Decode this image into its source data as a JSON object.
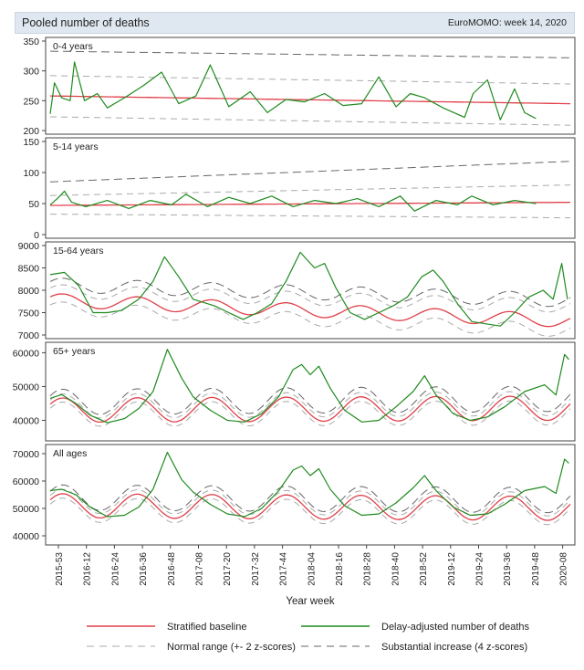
{
  "header": {
    "title": "Pooled number of deaths",
    "subtitle": "EuroMOMO: week 14, 2020"
  },
  "chart_data": {
    "type": "line",
    "xlabel": "Year week",
    "x_ticks": [
      "2015-53",
      "2016-12",
      "2016-24",
      "2016-36",
      "2016-48",
      "2017-08",
      "2017-20",
      "2017-32",
      "2017-44",
      "2018-04",
      "2018-16",
      "2018-28",
      "2018-40",
      "2018-52",
      "2019-12",
      "2019-24",
      "2019-36",
      "2019-48",
      "2020-08"
    ],
    "panels": [
      {
        "label": "0-4 years",
        "ylim": [
          200,
          350
        ],
        "yticks": [
          200,
          250,
          300,
          350
        ],
        "baseline": {
          "start": 258,
          "end": 245,
          "amp": 0
        },
        "delay_adjusted": [
          [
            0,
            228
          ],
          [
            3,
            280
          ],
          [
            8,
            255
          ],
          [
            14,
            250
          ],
          [
            17,
            315
          ],
          [
            24,
            250
          ],
          [
            33,
            262
          ],
          [
            40,
            238
          ],
          [
            52,
            255
          ],
          [
            65,
            275
          ],
          [
            78,
            298
          ],
          [
            90,
            245
          ],
          [
            102,
            258
          ],
          [
            112,
            310
          ],
          [
            125,
            240
          ],
          [
            140,
            265
          ],
          [
            152,
            230
          ],
          [
            165,
            252
          ],
          [
            178,
            248
          ],
          [
            192,
            262
          ],
          [
            205,
            242
          ],
          [
            218,
            245
          ],
          [
            230,
            290
          ],
          [
            242,
            240
          ],
          [
            252,
            262
          ],
          [
            262,
            255
          ],
          [
            275,
            238
          ],
          [
            290,
            222
          ],
          [
            296,
            262
          ],
          [
            306,
            285
          ],
          [
            315,
            218
          ],
          [
            325,
            270
          ],
          [
            332,
            230
          ],
          [
            340,
            220
          ]
        ],
        "normal_upper": {
          "start": 292,
          "end": 278
        },
        "normal_lower": {
          "start": 223,
          "end": 209
        },
        "substantial": {
          "start": 333,
          "end": 322
        }
      },
      {
        "label": "5-14 years",
        "ylim": [
          0,
          150
        ],
        "yticks": [
          0,
          50,
          100,
          150
        ],
        "baseline": {
          "start": 47,
          "end": 52,
          "amp": 0
        },
        "delay_adjusted": [
          [
            0,
            48
          ],
          [
            5,
            58
          ],
          [
            10,
            70
          ],
          [
            15,
            52
          ],
          [
            25,
            45
          ],
          [
            40,
            55
          ],
          [
            55,
            42
          ],
          [
            70,
            55
          ],
          [
            85,
            48
          ],
          [
            95,
            65
          ],
          [
            110,
            45
          ],
          [
            125,
            60
          ],
          [
            140,
            50
          ],
          [
            155,
            62
          ],
          [
            170,
            45
          ],
          [
            185,
            55
          ],
          [
            200,
            50
          ],
          [
            215,
            58
          ],
          [
            230,
            45
          ],
          [
            245,
            62
          ],
          [
            255,
            38
          ],
          [
            270,
            55
          ],
          [
            285,
            48
          ],
          [
            295,
            62
          ],
          [
            310,
            48
          ],
          [
            325,
            55
          ],
          [
            340,
            50
          ]
        ],
        "normal_upper": {
          "start": 63,
          "end": 80
        },
        "normal_lower": {
          "start": 33,
          "end": 27
        },
        "substantial": {
          "start": 85,
          "end": 118
        }
      },
      {
        "label": "15-64 years",
        "ylim": [
          7000,
          9000
        ],
        "yticks": [
          7000,
          7500,
          8000,
          8500,
          9000
        ],
        "baseline": {
          "start": 7780,
          "end": 7320,
          "amp": 150
        },
        "delay_adjusted": [
          [
            0,
            8350
          ],
          [
            10,
            8400
          ],
          [
            20,
            8100
          ],
          [
            30,
            7500
          ],
          [
            40,
            7500
          ],
          [
            50,
            7550
          ],
          [
            62,
            7800
          ],
          [
            72,
            8200
          ],
          [
            80,
            8750
          ],
          [
            90,
            8300
          ],
          [
            100,
            7800
          ],
          [
            115,
            7650
          ],
          [
            125,
            7500
          ],
          [
            135,
            7350
          ],
          [
            145,
            7500
          ],
          [
            155,
            7700
          ],
          [
            165,
            8200
          ],
          [
            175,
            8850
          ],
          [
            185,
            8500
          ],
          [
            192,
            8600
          ],
          [
            200,
            8050
          ],
          [
            210,
            7500
          ],
          [
            220,
            7350
          ],
          [
            230,
            7500
          ],
          [
            240,
            7650
          ],
          [
            250,
            7850
          ],
          [
            260,
            8300
          ],
          [
            268,
            8450
          ],
          [
            275,
            8200
          ],
          [
            285,
            7700
          ],
          [
            295,
            7300
          ],
          [
            305,
            7250
          ],
          [
            315,
            7200
          ],
          [
            325,
            7500
          ],
          [
            335,
            7850
          ],
          [
            345,
            8000
          ],
          [
            352,
            7800
          ],
          [
            358,
            8600
          ],
          [
            362,
            7800
          ]
        ],
        "normal_upper": {
          "start": 7980,
          "end": 7650
        },
        "normal_lower": {
          "start": 7600,
          "end": 7100
        },
        "substantial": {
          "start": 8120,
          "end": 7780
        }
      },
      {
        "label": "65+ years",
        "ylim": [
          35000,
          62000
        ],
        "yticks": [
          40000,
          50000,
          60000
        ],
        "baseline": {
          "start": 43000,
          "end": 43600,
          "amp": 3600
        },
        "delay_adjusted": [
          [
            0,
            46500
          ],
          [
            8,
            47600
          ],
          [
            18,
            45000
          ],
          [
            28,
            41500
          ],
          [
            40,
            39300
          ],
          [
            52,
            40500
          ],
          [
            62,
            43500
          ],
          [
            72,
            48500
          ],
          [
            82,
            61000
          ],
          [
            92,
            52500
          ],
          [
            100,
            47000
          ],
          [
            112,
            43000
          ],
          [
            124,
            40000
          ],
          [
            136,
            39500
          ],
          [
            148,
            42000
          ],
          [
            160,
            47000
          ],
          [
            170,
            55000
          ],
          [
            176,
            56500
          ],
          [
            182,
            53500
          ],
          [
            188,
            56000
          ],
          [
            196,
            49500
          ],
          [
            206,
            43000
          ],
          [
            218,
            39500
          ],
          [
            230,
            40000
          ],
          [
            242,
            44000
          ],
          [
            254,
            48500
          ],
          [
            262,
            53200
          ],
          [
            270,
            47500
          ],
          [
            282,
            42000
          ],
          [
            294,
            40000
          ],
          [
            306,
            41000
          ],
          [
            318,
            44000
          ],
          [
            332,
            48500
          ],
          [
            346,
            50500
          ],
          [
            354,
            47500
          ],
          [
            360,
            59500
          ],
          [
            363,
            58000
          ]
        ],
        "normal_upper": {
          "start": 44200,
          "end": 45000
        },
        "normal_lower": {
          "start": 41800,
          "end": 42200
        },
        "substantial": {
          "start": 45400,
          "end": 46400
        }
      },
      {
        "label": "All ages",
        "ylim": [
          38000,
          72000
        ],
        "yticks": [
          40000,
          50000,
          60000,
          70000
        ],
        "baseline": {
          "start": 51000,
          "end": 50000,
          "amp": 4400
        },
        "delay_adjusted": [
          [
            0,
            56500
          ],
          [
            8,
            57000
          ],
          [
            18,
            55000
          ],
          [
            28,
            50500
          ],
          [
            40,
            47000
          ],
          [
            52,
            47500
          ],
          [
            62,
            50500
          ],
          [
            72,
            57000
          ],
          [
            82,
            70500
          ],
          [
            92,
            60500
          ],
          [
            100,
            56000
          ],
          [
            112,
            51500
          ],
          [
            124,
            48000
          ],
          [
            136,
            47000
          ],
          [
            148,
            50000
          ],
          [
            160,
            56500
          ],
          [
            170,
            64000
          ],
          [
            176,
            65500
          ],
          [
            182,
            62000
          ],
          [
            188,
            64500
          ],
          [
            196,
            57000
          ],
          [
            206,
            51000
          ],
          [
            218,
            47500
          ],
          [
            230,
            48000
          ],
          [
            242,
            52000
          ],
          [
            254,
            57500
          ],
          [
            262,
            62000
          ],
          [
            270,
            56500
          ],
          [
            282,
            50500
          ],
          [
            294,
            47500
          ],
          [
            306,
            48000
          ],
          [
            318,
            51500
          ],
          [
            332,
            56500
          ],
          [
            346,
            58000
          ],
          [
            354,
            55500
          ],
          [
            360,
            68000
          ],
          [
            363,
            66500
          ]
        ],
        "normal_upper": {
          "start": 52600,
          "end": 51600
        },
        "normal_lower": {
          "start": 49400,
          "end": 48400
        },
        "substantial": {
          "start": 54000,
          "end": 53000
        }
      }
    ],
    "legend": [
      {
        "name": "Stratified baseline",
        "color": "#e0404a",
        "style": "solid"
      },
      {
        "name": "Delay-adjusted number of deaths",
        "color": "#1f8a1f",
        "style": "solid"
      },
      {
        "name": "Normal range (+- 2 z-scores)",
        "color": "#aaaaaa",
        "style": "dashed"
      },
      {
        "name": "Substantial increase (4 z-scores)",
        "color": "#666666",
        "style": "dashed"
      }
    ]
  }
}
